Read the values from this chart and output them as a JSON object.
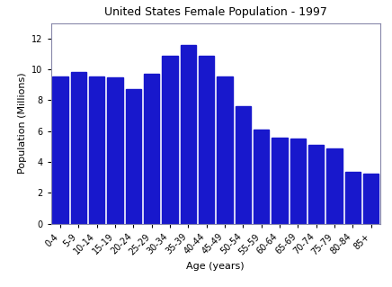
{
  "title": "United States Female Population - 1997",
  "xlabel": "Age (years)",
  "ylabel": "Population (Millions)",
  "categories": [
    "0-4",
    "5-9",
    "10-14",
    "15-19",
    "20-24",
    "25-29",
    "30-34",
    "35-39",
    "40-44",
    "45-49",
    "50-54",
    "55-59",
    "60-64",
    "65-69",
    "70-74",
    "75-79",
    "80-84",
    "85+"
  ],
  "values": [
    9.55,
    9.83,
    9.55,
    9.48,
    8.72,
    9.7,
    10.88,
    11.6,
    10.9,
    9.55,
    7.6,
    6.1,
    5.6,
    5.5,
    5.1,
    4.88,
    3.38,
    3.25
  ],
  "bar_color": "#1818CC",
  "spine_color": "#8888AA",
  "ylim": [
    0,
    13
  ],
  "yticks": [
    0,
    2,
    4,
    6,
    8,
    10,
    12
  ],
  "bar_width": 0.85,
  "title_fontsize": 9,
  "label_fontsize": 8,
  "tick_fontsize": 7
}
